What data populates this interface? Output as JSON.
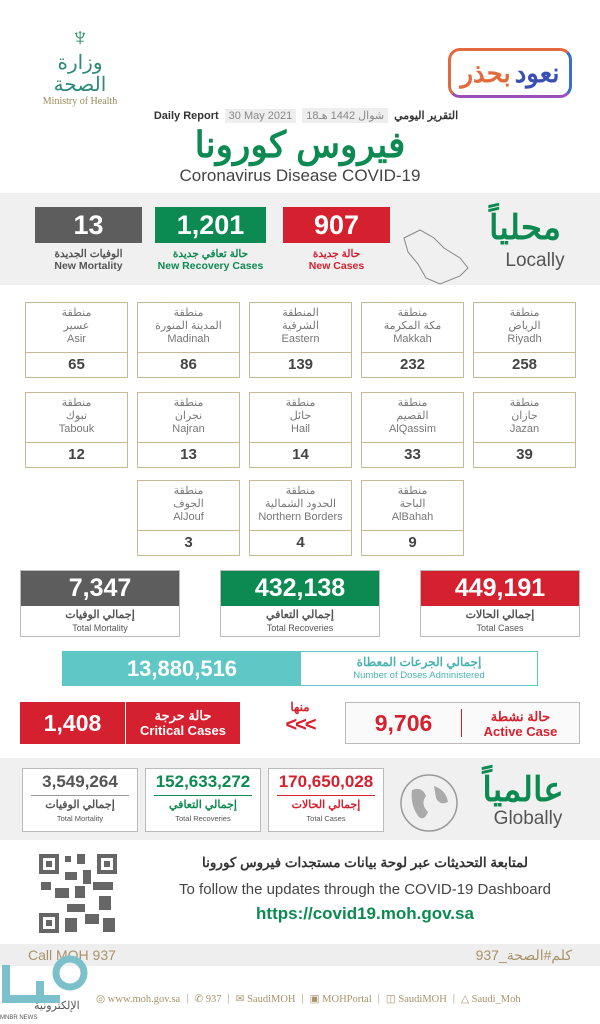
{
  "header": {
    "moh_ar": "وزارة الصحة",
    "moh_en": "Ministry of Health",
    "campaign_part1": "نعود",
    "campaign_part2": "بحذر",
    "daily_ar": "التقرير اليومي",
    "hijri": "18شوال 1442 هـ",
    "gregorian": "30 May 2021",
    "daily_en": "Daily Report",
    "title_ar": "فيروس كورونا",
    "title_en": "Coronavirus Disease COVID-19"
  },
  "local": {
    "label_ar": "محلياً",
    "label_en": "Locally",
    "new_cases": {
      "value": "907",
      "ar": "حالة جديدة",
      "en": "New Cases"
    },
    "new_recovery": {
      "value": "1,201",
      "ar": "حالة تعافي جديدة",
      "en": "New Recovery Cases"
    },
    "new_mortality": {
      "value": "13",
      "ar": "الوفيات الجديدة",
      "en": "New Mortality"
    }
  },
  "regions": [
    {
      "prefix": "منطقة",
      "ar": "الرياض",
      "en": "Riyadh",
      "value": "258"
    },
    {
      "prefix": "منطقة",
      "ar": "مكة المكرمة",
      "en": "Makkah",
      "value": "232"
    },
    {
      "prefix": "المنطقة",
      "ar": "الشرقية",
      "en": "Eastern",
      "value": "139"
    },
    {
      "prefix": "منطقة",
      "ar": "المدينة المنورة",
      "en": "Madinah",
      "value": "86"
    },
    {
      "prefix": "منطقة",
      "ar": "عسير",
      "en": "Asir",
      "value": "65"
    },
    {
      "prefix": "منطقة",
      "ar": "جازان",
      "en": "Jazan",
      "value": "39"
    },
    {
      "prefix": "منطقة",
      "ar": "القصيم",
      "en": "AlQassim",
      "value": "33"
    },
    {
      "prefix": "منطقة",
      "ar": "حائل",
      "en": "Hail",
      "value": "14"
    },
    {
      "prefix": "منطقة",
      "ar": "نجران",
      "en": "Najran",
      "value": "13"
    },
    {
      "prefix": "منطقة",
      "ar": "تبوك",
      "en": "Tabouk",
      "value": "12"
    },
    {
      "prefix": "منطقة",
      "ar": "الباحة",
      "en": "AlBahah",
      "value": "9"
    },
    {
      "prefix": "منطقة",
      "ar": "الحدود الشمالية",
      "en": "Northern Borders",
      "value": "4"
    },
    {
      "prefix": "منطقة",
      "ar": "الجوف",
      "en": "AlJouf",
      "value": "3"
    }
  ],
  "totals": {
    "cases": {
      "value": "449,191",
      "ar": "إجمالي الحالات",
      "en": "Total Cases"
    },
    "recoveries": {
      "value": "432,138",
      "ar": "إجمالي التعافي",
      "en": "Total Recoveries"
    },
    "mortality": {
      "value": "7,347",
      "ar": "إجمالي الوفيات",
      "en": "Total Mortality"
    }
  },
  "doses": {
    "value": "13,880,516",
    "ar": "إجمالي الجرعات المعطاة",
    "en": "Number of Doses Administered"
  },
  "active": {
    "value": "9,706",
    "ar": "حالة نشطة",
    "en": "Active Case"
  },
  "of_which": "منها",
  "arrows": "<<<",
  "critical": {
    "value": "1,408",
    "ar": "حالة حرجة",
    "en": "Critical Cases"
  },
  "global": {
    "label_ar": "عالمياً",
    "label_en": "Globally",
    "cases": {
      "value": "170,650,028",
      "ar": "إجمالي الحالات",
      "en": "Total Cases"
    },
    "recoveries": {
      "value": "152,633,272",
      "ar": "إجمالي التعافي",
      "en": "Total Recoveries"
    },
    "mortality": {
      "value": "3,549,264",
      "ar": "إجمالي الوفيات",
      "en": "Total Mortality"
    }
  },
  "dashboard": {
    "ar": "لمتابعة التحديثات عبر لوحة بيانات مستجدات فيروس كورونا",
    "en": "To follow the updates through the COVID-19 Dashboard",
    "url": "https://covid19.moh.gov.sa"
  },
  "call": {
    "en": "Call MOH 937",
    "ar": "كلم#الصحة_937"
  },
  "footer": [
    "www.moh.gov.sa",
    "937",
    "SaudiMOH",
    "MOHPortal",
    "SaudiMOH",
    "Saudi_Moh"
  ],
  "watermark": {
    "ar": "الإلكترونية",
    "en": "MNBR NEWS"
  },
  "colors": {
    "red": "#d5202f",
    "green": "#0c8a52",
    "gray": "#5d5d5d",
    "teal": "#5fc7c6"
  }
}
